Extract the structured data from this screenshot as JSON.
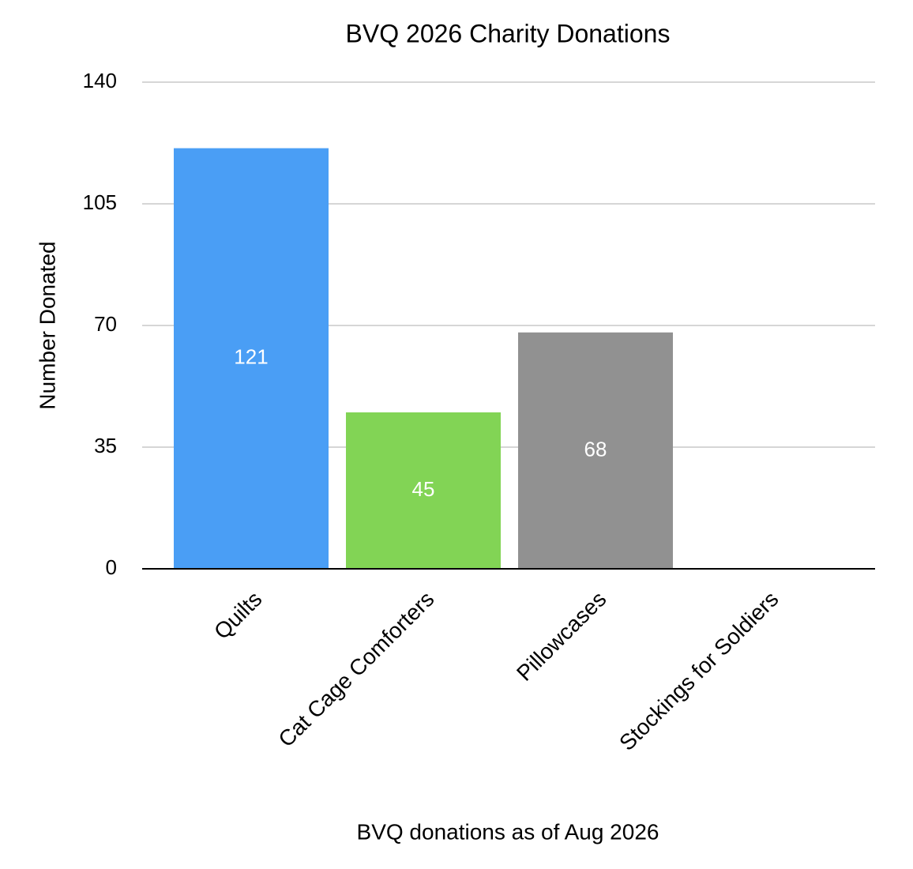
{
  "chart_data": {
    "type": "bar",
    "title": "BVQ 2026 Charity Donations",
    "x_label": "BVQ donations as of Aug 2026",
    "y_label": "Number Donated",
    "categories": [
      "Quilts",
      "Cat Cage Comforters",
      "Pillowcases",
      "Stockings for Soldiers"
    ],
    "values": [
      121,
      45,
      68,
      null
    ],
    "colors": [
      "#4a9ef5",
      "#82d455",
      "#919191",
      null
    ],
    "ylim": [
      0,
      140
    ],
    "yticks": [
      0,
      35,
      70,
      105,
      140
    ],
    "grid": true,
    "data_labels": true
  }
}
